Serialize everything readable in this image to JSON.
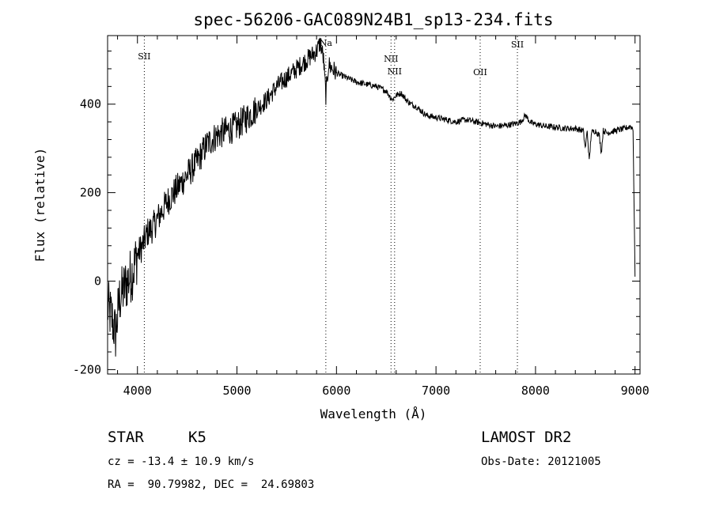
{
  "chart_data": {
    "type": "line",
    "title": "spec-56206-GAC089N24B1_sp13-234.fits",
    "xlabel": "Wavelength (Å)",
    "ylabel": "Flux (relative)",
    "xlim": [
      3700,
      9050
    ],
    "ylim": [
      -210,
      555
    ],
    "x_ticks": [
      4000,
      5000,
      6000,
      7000,
      8000,
      9000
    ],
    "y_ticks": [
      -200,
      0,
      200,
      400
    ],
    "grid": false,
    "series": [
      {
        "x": [
          3700,
          3740,
          3780,
          3820,
          3860,
          3900,
          3950,
          4000,
          4050,
          4100,
          4150,
          4200,
          4300,
          4400,
          4500,
          4600,
          4700,
          4800,
          4900,
          5000,
          5100,
          5200,
          5300,
          5400,
          5500,
          5600,
          5700,
          5750,
          5800,
          5840,
          5870,
          5893,
          5920,
          5960,
          6000,
          6050,
          6100,
          6200,
          6300,
          6400,
          6500,
          6560,
          6600,
          6650,
          6700,
          6750,
          6800,
          6850,
          6900,
          7000,
          7100,
          7200,
          7300,
          7400,
          7500,
          7600,
          7700,
          7800,
          7850,
          7900,
          7950,
          8000,
          8100,
          8200,
          8300,
          8400,
          8480,
          8500,
          8520,
          8540,
          8560,
          8600,
          8640,
          8662,
          8680,
          8720,
          8800,
          8900,
          8950,
          8980,
          9000
        ],
        "y": [
          -60,
          -80,
          -120,
          -40,
          -20,
          0,
          20,
          60,
          80,
          110,
          120,
          140,
          180,
          210,
          240,
          270,
          310,
          330,
          340,
          350,
          370,
          390,
          410,
          440,
          460,
          480,
          500,
          510,
          520,
          540,
          500,
          420,
          490,
          480,
          470,
          465,
          460,
          450,
          445,
          440,
          430,
          410,
          420,
          425,
          410,
          400,
          395,
          385,
          375,
          370,
          365,
          360,
          365,
          360,
          355,
          350,
          352,
          356,
          360,
          375,
          358,
          355,
          350,
          348,
          345,
          345,
          340,
          300,
          340,
          270,
          335,
          340,
          330,
          290,
          340,
          335,
          340,
          345,
          350,
          345,
          10
        ]
      }
    ],
    "lines": [
      {
        "label": "SII",
        "x": 4069
      },
      {
        "label": "Na",
        "x": 5893
      },
      {
        "label": "NII",
        "x": 6548
      },
      {
        "label": "NII",
        "x": 6584
      },
      {
        "label": "OII",
        "x": 7444
      },
      {
        "label": "SII",
        "x": 7818
      }
    ]
  },
  "info": {
    "class_label": "STAR",
    "subclass": "K5",
    "survey": "LAMOST DR2",
    "cz": "cz = -13.4 ± 10.9 km/s",
    "obs_date": "Obs-Date: 20121005",
    "coords": "RA =  90.79982, DEC =  24.69803"
  }
}
